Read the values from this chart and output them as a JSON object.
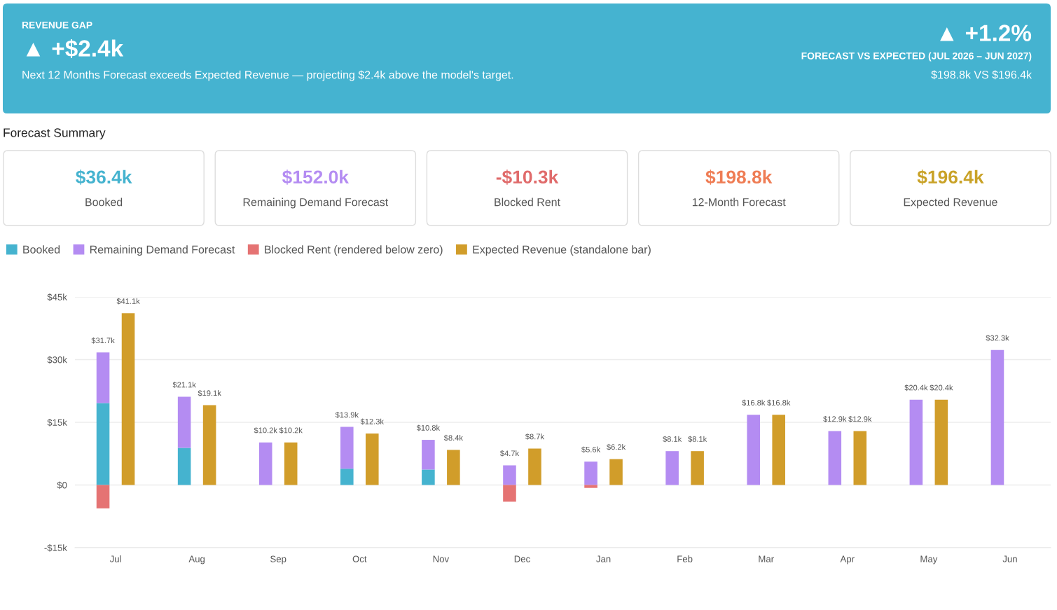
{
  "chart_data": [
    {
      "type": "other",
      "annotations": [
        "REVENUE GAP",
        "▲ +$2.4k",
        "Next 12 Months Forecast exceeds Expected Revenue — projecting $2.4k above the model's target.",
        "▲ +1.2%",
        "FORECAST VS EXPECTED (JUL 2026 – JUN 2027)",
        "$198.8k VS $196.4k"
      ]
    },
    {
      "type": "other",
      "title": "Forecast Summary",
      "categories": [
        "Booked",
        "Remaining Demand Forecast",
        "Blocked Rent",
        "12-Month Forecast",
        "Expected Revenue"
      ],
      "value_labels": [
        "$36.4k",
        "$152.0k",
        "-$10.3k",
        "$198.8k",
        "$196.4k"
      ]
    },
    {
      "type": "bar",
      "stacked": true,
      "categories": [
        "Jul",
        "Aug",
        "Sep",
        "Oct",
        "Nov",
        "Dec",
        "Jan",
        "Feb",
        "Mar",
        "Apr",
        "May",
        "Jun"
      ],
      "series": [
        {
          "name": "Booked",
          "color": "#45b3cf",
          "values": [
            19600,
            8900,
            0,
            3900,
            3700,
            0,
            0,
            0,
            0,
            0,
            0,
            0
          ]
        },
        {
          "name": "Remaining Demand Forecast",
          "color": "#b48cf2",
          "values": [
            12100,
            12200,
            10200,
            10000,
            7100,
            4700,
            5600,
            8100,
            16800,
            12900,
            20400,
            32300
          ]
        }
      ],
      "totals": [
        "$31.7k",
        "$21.1k",
        "$10.2k",
        "$13.9k",
        "$10.8k",
        "$4.7k",
        "$5.6k",
        "$8.1k",
        "$16.8k",
        "$12.9k",
        "$20.4k",
        "$32.3k"
      ],
      "ylim": [
        -15000,
        45000
      ],
      "yticks": [
        {
          "value": -15000,
          "label": "-$15k"
        },
        {
          "value": 0,
          "label": "$0"
        },
        {
          "value": 15000,
          "label": "$15k"
        },
        {
          "value": 30000,
          "label": "$30k"
        },
        {
          "value": 45000,
          "label": "$45k"
        }
      ],
      "grid": "y",
      "legend": "top left"
    },
    {
      "type": "bar",
      "categories": [
        null,
        null,
        null,
        null,
        null,
        null,
        null,
        null,
        null,
        null,
        null,
        null
      ],
      "series": [
        {
          "name": "Blocked Rent (rendered below zero)",
          "color": "#e57373",
          "values": [
            -5600,
            0,
            0,
            0,
            0,
            -4000,
            -700,
            0,
            0,
            0,
            0,
            0
          ]
        },
        {
          "name": "Expected Revenue (standalone bar)",
          "color": "#d19d2a",
          "values": [
            41100,
            19100,
            10200,
            12300,
            8400,
            8700,
            6200,
            8100,
            16800,
            12900,
            20400,
            null
          ],
          "value_labels": [
            "$41.1k",
            "$19.1k",
            "$10.2k",
            "$12.3k",
            "$8.4k",
            "$8.7k",
            "$6.2k",
            "$8.1k",
            "$16.8k",
            "$12.9k",
            "$20.4k",
            null
          ]
        }
      ],
      "ylim": [
        -15000,
        45000
      ],
      "tick_labels": false,
      "legend": "top left"
    }
  ]
}
